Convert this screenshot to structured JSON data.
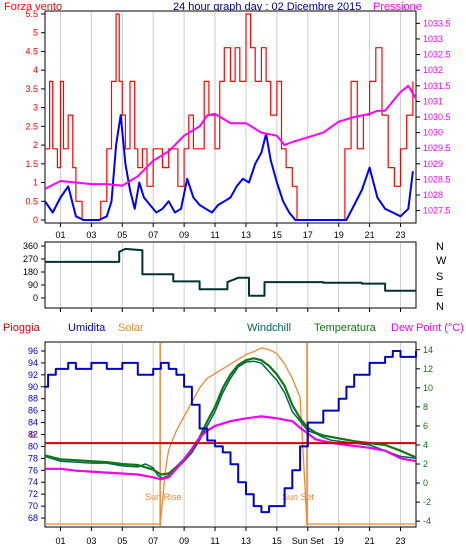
{
  "colors": {
    "gust": "#ff0000",
    "wind": "#0000ff",
    "pressure": "#ff00ff",
    "direction": "#003333",
    "humidity": "#0000cc",
    "solar": "#ee8833",
    "windchill": "#006655",
    "temperature": "#117711",
    "dewpoint": "#ee00ee",
    "rain": "#cc0000",
    "grid": "#cccccc",
    "text_blue": "#000099"
  },
  "chart_data": [
    {
      "type": "line",
      "id": "wind-pressure",
      "title": "24 hour graph day : 02 Dicembre 2015",
      "left_label": "Forza vento",
      "right_label": "Pressione",
      "x_ticks": [
        "01",
        "03",
        "05",
        "07",
        "09",
        "11",
        "13",
        "15",
        "17",
        "19",
        "21",
        "23"
      ],
      "y_left_ticks": [
        "0",
        "0.5",
        "1",
        "1.5",
        "2",
        "2.5",
        "3",
        "3.5",
        "4",
        "4.5",
        "5",
        "5.5"
      ],
      "y_left_range": [
        0,
        5.5
      ],
      "y_right_ticks": [
        "1027.5",
        "1028",
        "1028.5",
        "1029",
        "1029.5",
        "1030",
        "1030.5",
        "1031",
        "1031.5",
        "1032",
        "1032.5",
        "1033",
        "1033.5"
      ],
      "y_right_range": [
        1027.2,
        1033.8
      ],
      "series": [
        {
          "key": "gust",
          "x": [
            0,
            0.3,
            0.5,
            0.8,
            1,
            1.2,
            1.5,
            1.8,
            2,
            2.4,
            2.8,
            3.2,
            3.6,
            4,
            4.3,
            4.6,
            4.8,
            5,
            5.2,
            5.5,
            5.8,
            6,
            6.3,
            6.6,
            7,
            7.3,
            7.6,
            8,
            8.3,
            8.6,
            9,
            9.3,
            9.6,
            10,
            10.3,
            10.6,
            11,
            11.3,
            11.6,
            12,
            12.3,
            12.6,
            13,
            13.3,
            13.6,
            14,
            14.3,
            14.6,
            15,
            15.3,
            15.6,
            16,
            16.3,
            16.6,
            17,
            17.5,
            18,
            18.5,
            19,
            19.4,
            19.8,
            20.2,
            20.6,
            21,
            21.4,
            21.8,
            22.2,
            22.6,
            23,
            23.4,
            23.8
          ],
          "y": [
            1.9,
            3.7,
            1.9,
            1.4,
            3.7,
            1.9,
            2.8,
            1.4,
            0.5,
            0,
            0,
            0,
            0.5,
            1.9,
            3.7,
            5.5,
            3.7,
            2.8,
            1.9,
            3.7,
            1.9,
            1.4,
            1.9,
            0.9,
            1.9,
            1.9,
            1.4,
            1.9,
            1.9,
            0.9,
            1.9,
            2.8,
            1.9,
            1.9,
            3.7,
            2.8,
            1.9,
            3.7,
            4.6,
            3.7,
            4.6,
            3.7,
            5.5,
            4.6,
            3.7,
            4.6,
            3.7,
            2.8,
            3.7,
            1.9,
            1.4,
            0.9,
            0,
            0,
            0,
            0,
            0,
            0,
            0,
            1.9,
            3.7,
            1.9,
            2.8,
            3.7,
            4.6,
            2.8,
            1.4,
            0.9,
            1.9,
            2.8,
            3.7
          ]
        },
        {
          "key": "wind",
          "x": [
            0,
            0.5,
            1,
            1.5,
            2,
            2.5,
            3,
            3.5,
            4,
            4.3,
            4.6,
            4.9,
            5.2,
            5.5,
            5.8,
            6.1,
            6.4,
            6.8,
            7.2,
            7.6,
            8,
            8.4,
            8.8,
            9.2,
            9.6,
            10,
            10.4,
            10.8,
            11.2,
            11.6,
            12,
            12.4,
            12.8,
            13.2,
            13.6,
            14,
            14.3,
            14.6,
            15,
            15.4,
            15.8,
            16.2,
            16.6,
            17,
            17.5,
            18,
            18.5,
            19,
            19.5,
            20,
            20.5,
            21,
            21.5,
            22,
            22.5,
            23,
            23.5,
            23.8
          ],
          "y": [
            0.5,
            0.2,
            0.6,
            0.9,
            0.1,
            0,
            0,
            0,
            0.1,
            0.5,
            2,
            2.8,
            1.5,
            0.8,
            0.3,
            1,
            0.6,
            0.4,
            0.2,
            0.3,
            0.5,
            0.2,
            0.3,
            1.1,
            0.6,
            0.4,
            0.3,
            0.2,
            0.4,
            0.5,
            0.6,
            0.9,
            1.1,
            1,
            1.5,
            1.8,
            2.3,
            1.6,
            1,
            0.5,
            0.2,
            0,
            0,
            0,
            0,
            0,
            0,
            0,
            0,
            0.4,
            0.8,
            1.4,
            0.6,
            0.3,
            0.2,
            0.1,
            0.3,
            1.3
          ]
        },
        {
          "key": "pressure",
          "x": [
            0,
            1,
            2,
            3,
            4,
            5,
            6,
            7,
            8,
            9,
            10,
            10.5,
            11,
            12,
            13,
            14,
            15,
            15.5,
            16,
            17,
            18,
            19,
            20,
            21,
            21.5,
            22,
            22.5,
            23,
            23.5,
            24
          ],
          "y": [
            1028.2,
            1028.45,
            1028.4,
            1028.35,
            1028.35,
            1028.3,
            1028.6,
            1029.1,
            1029.4,
            1029.9,
            1030.2,
            1030.55,
            1030.6,
            1030.3,
            1030.3,
            1030.0,
            1029.9,
            1029.6,
            1029.7,
            1029.85,
            1030.0,
            1030.35,
            1030.5,
            1030.6,
            1030.7,
            1030.7,
            1031.0,
            1031.3,
            1031.5,
            1031.1
          ]
        }
      ]
    },
    {
      "type": "line",
      "id": "wind-direction",
      "x_ticks": [],
      "y_left_ticks": [
        "0",
        "90",
        "180",
        "270",
        "360"
      ],
      "y_left_range": [
        0,
        360
      ],
      "compass_labels": [
        "N",
        "W",
        "S",
        "E",
        "N"
      ],
      "series": [
        {
          "key": "direction",
          "x": [
            0,
            4.8,
            4.8,
            5.2,
            6.3,
            6.3,
            8.3,
            8.3,
            10,
            10,
            11.8,
            11.8,
            12.5,
            13.2,
            13.2,
            14.2,
            14.2,
            18,
            18,
            20.5,
            20.5,
            22,
            22,
            24
          ],
          "y": [
            250,
            250,
            320,
            340,
            330,
            165,
            165,
            115,
            115,
            60,
            60,
            110,
            140,
            140,
            15,
            15,
            110,
            110,
            105,
            105,
            100,
            100,
            50,
            50
          ]
        }
      ]
    },
    {
      "type": "line",
      "id": "humidity-temperature",
      "labels": {
        "rain": "Pioggia",
        "humidity": "Umidita",
        "solar": "Solar",
        "windchill": "Windchill",
        "temperature": "Temperatura",
        "dewpoint": "Dew Point (°C)",
        "sunrise": "Sun Rise",
        "sunset": "Sun Set"
      },
      "rain_zero_label": "0",
      "sunrise_hour": 7.45,
      "sunset_hour": 16.95,
      "x_ticks": [
        "01",
        "03",
        "05",
        "07",
        "09",
        "11",
        "13",
        "15",
        "Sun Set",
        "19",
        "21",
        "23"
      ],
      "y_left_ticks": [
        "68",
        "70",
        "72",
        "74",
        "76",
        "78",
        "80",
        "82",
        "84",
        "86",
        "88",
        "90",
        "92",
        "94",
        "96"
      ],
      "y_left_range": [
        67,
        97
      ],
      "y_right_ticks": [
        "-4",
        "-2",
        "0",
        "2",
        "4",
        "6",
        "8",
        "10",
        "12",
        "14"
      ],
      "y_right_range": [
        -4.3,
        14.5
      ],
      "series": [
        {
          "key": "humidity",
          "axis": "left",
          "x": [
            0,
            0.2,
            0.7,
            1,
            1.5,
            2,
            3,
            4,
            5,
            6,
            7,
            7.5,
            8,
            8.5,
            9,
            9.5,
            10,
            10.5,
            11,
            11.5,
            12,
            12.5,
            13,
            13.5,
            14,
            14.5,
            15,
            15.5,
            16,
            16.5,
            17,
            18,
            19,
            19.5,
            20,
            21,
            22,
            22.5,
            23,
            24
          ],
          "y": [
            90,
            92,
            93,
            93,
            94,
            93,
            94,
            93,
            94,
            92,
            93,
            94,
            93,
            92,
            90,
            87,
            83,
            81,
            80,
            79,
            77,
            74,
            72,
            70,
            69,
            70,
            70,
            73,
            76,
            80,
            84,
            86,
            88,
            90,
            92,
            94,
            95,
            96,
            95,
            96
          ]
        },
        {
          "key": "solar",
          "axis": "right",
          "x": [
            0,
            7,
            7.45,
            7.8,
            8,
            8.5,
            9,
            9.5,
            10,
            10.5,
            11,
            11.5,
            12,
            12.5,
            13,
            13.5,
            14,
            14.5,
            15,
            15.5,
            16,
            16.5,
            16.95,
            17,
            24
          ],
          "y": [
            -4.3,
            -4.3,
            -4.3,
            1.5,
            3.5,
            5.5,
            7,
            8.5,
            10,
            11,
            11.5,
            12,
            12.5,
            13,
            13.5,
            13.8,
            14.2,
            14.0,
            13.6,
            12.5,
            11,
            9,
            -4.3,
            -4.3,
            -4.3
          ]
        },
        {
          "key": "windchill",
          "axis": "right",
          "x": [
            0,
            1,
            2,
            3,
            4,
            5,
            6,
            6.5,
            7,
            7.3,
            7.6,
            8,
            8.5,
            9,
            9.5,
            10,
            10.5,
            11,
            11.5,
            12,
            12.5,
            13,
            13.5,
            14,
            14.5,
            15,
            15.5,
            16,
            16.5,
            17,
            17.5,
            18,
            18.5,
            19,
            20,
            21,
            22,
            23,
            24
          ],
          "y": [
            2.8,
            2.3,
            2.2,
            2.1,
            2.1,
            1.8,
            1.7,
            2.0,
            1.6,
            0.8,
            0.5,
            0.8,
            1.5,
            2.3,
            3.2,
            4.5,
            6,
            7.5,
            9.5,
            11,
            12.2,
            12.7,
            12.8,
            12.6,
            11.7,
            10.8,
            9.5,
            7.5,
            6.5,
            5.5,
            5.2,
            4.8,
            4.5,
            4.4,
            4.2,
            4.0,
            3.4,
            2.8,
            2.6
          ]
        },
        {
          "key": "temperature",
          "axis": "right",
          "x": [
            0,
            1,
            2,
            3,
            4,
            5,
            6,
            7,
            7.5,
            8,
            8.5,
            9,
            9.5,
            10,
            10.5,
            11,
            11.5,
            12,
            12.5,
            13,
            13.5,
            14,
            14.5,
            15,
            15.5,
            16,
            16.5,
            17,
            17.5,
            18,
            19,
            20,
            21,
            22,
            23,
            24
          ],
          "y": [
            2.9,
            2.5,
            2.4,
            2.3,
            2.2,
            2.0,
            1.9,
            1.4,
            0.9,
            1.0,
            1.7,
            2.5,
            3.5,
            4.8,
            6.5,
            8,
            10,
            11.4,
            12.4,
            12.9,
            13.1,
            12.9,
            12.3,
            11.4,
            10.2,
            8.2,
            6.8,
            5.8,
            5.3,
            5.0,
            4.7,
            4.4,
            4.2,
            4.0,
            3.4,
            2.7
          ]
        },
        {
          "key": "dewpoint",
          "axis": "right",
          "x": [
            0,
            1,
            2,
            3,
            4,
            5,
            6,
            7,
            7.5,
            8,
            8.5,
            9,
            9.5,
            10,
            10.5,
            11,
            12,
            13,
            14,
            15,
            16,
            16.5,
            17,
            17.5,
            18,
            19,
            20,
            21,
            22,
            23,
            24
          ],
          "y": [
            1.5,
            1.5,
            1.3,
            1.2,
            1.1,
            1.0,
            0.9,
            0.6,
            0.4,
            0.6,
            1.5,
            2.5,
            3.6,
            4.8,
            5.5,
            6,
            6.5,
            6.8,
            7.0,
            6.8,
            6.5,
            5.8,
            5.2,
            4.6,
            4.4,
            4.1,
            3.9,
            3.7,
            3.4,
            2.6,
            2.3
          ]
        },
        {
          "key": "rain",
          "axis": "right",
          "x": [
            0,
            24
          ],
          "y": [
            4.2,
            4.2
          ]
        }
      ]
    }
  ]
}
